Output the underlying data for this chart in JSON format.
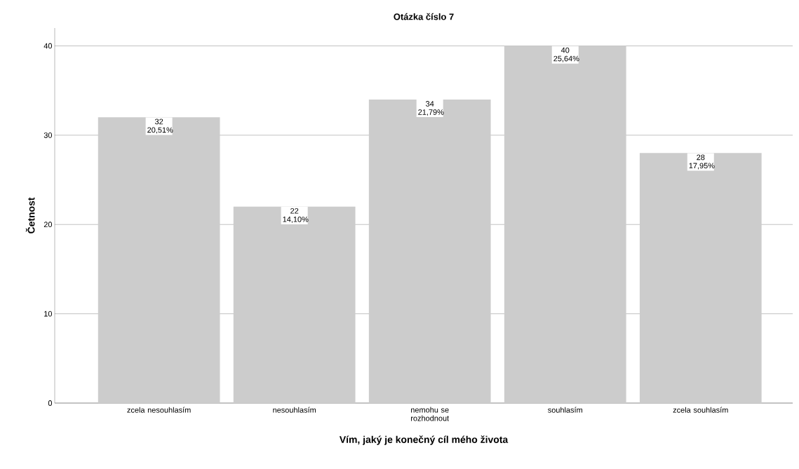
{
  "chart_data": {
    "type": "bar",
    "title": "Otázka číslo 7",
    "xlabel": "Vím, jaký je konečný cíl mého života",
    "ylabel": "Četnost",
    "categories": [
      "zcela nesouhlasím",
      "nesouhlasím",
      "nemohu se rozhodnout",
      "souhlasím",
      "zcela souhlasím"
    ],
    "values": [
      32,
      22,
      34,
      40,
      28
    ],
    "color": "#cccccc",
    "value_labels": [
      "32 20,51%",
      "22 14,10%",
      "34 21,79%",
      "40 25,64%",
      "28 17,95%"
    ],
    "ylim": [
      0,
      42
    ],
    "yticks": [
      0,
      10,
      20,
      30,
      40
    ],
    "grid": "y"
  }
}
